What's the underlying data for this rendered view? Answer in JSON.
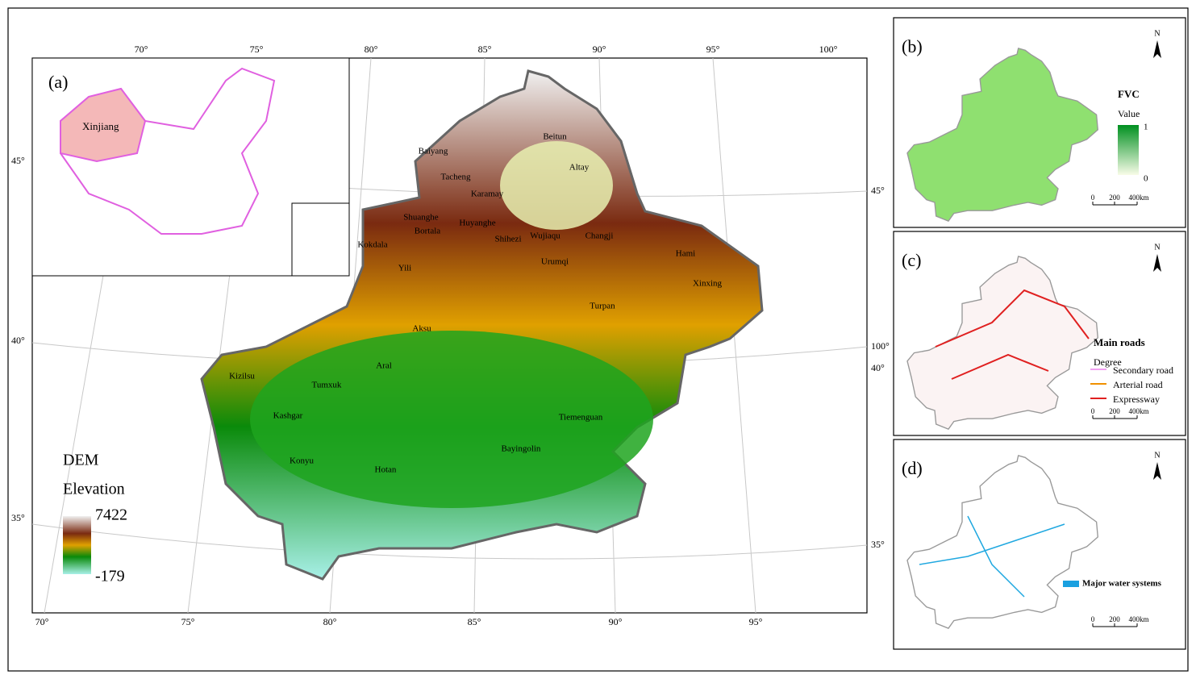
{
  "main_map": {
    "graticule_labels": {
      "top": [
        "70°",
        "75°",
        "80°",
        "85°",
        "90°",
        "95°",
        "100°"
      ],
      "bottom": [
        "70°",
        "75°",
        "80°",
        "85°",
        "90°",
        "95°"
      ],
      "left": [
        "45°",
        "40°",
        "35°"
      ],
      "right": [
        "45°",
        "100°",
        "40°",
        "35°"
      ]
    },
    "places": [
      "Baiyang",
      "Tacheng",
      "Karamay",
      "Beitun",
      "Altay",
      "Shuanghe",
      "Bortala",
      "Huyanghe",
      "Shihezi",
      "Wujiaqu",
      "Changji",
      "Kokdala",
      "Yili",
      "Urumqi",
      "Hami",
      "Xinxing",
      "Turpan",
      "Aksu",
      "Aral",
      "Kizilsu",
      "Tumxuk",
      "Kashgar",
      "Tiemenguan",
      "Bayingolin",
      "Konyu",
      "Hotan"
    ],
    "legend": {
      "title": "DEM",
      "subtitle": "Elevation",
      "max": "7422",
      "min": "-179"
    }
  },
  "inset_a": {
    "label": "(a)",
    "region": "Xinjiang"
  },
  "panel_b": {
    "label": "(b)",
    "north": "N",
    "legend_title": "FVC",
    "legend_subtitle": "Value",
    "max": "1",
    "min": "0",
    "scale_bar": [
      "0",
      "200",
      "400km"
    ]
  },
  "panel_c": {
    "label": "(c)",
    "north": "N",
    "legend_title": "Main roads",
    "legend_subtitle": "Degree",
    "items": [
      "Secondary road",
      "Arterial road",
      "Expressway"
    ],
    "scale_bar": [
      "0",
      "200",
      "400km"
    ]
  },
  "panel_d": {
    "label": "(d)",
    "north": "N",
    "legend_item": "Major water systems",
    "scale_bar": [
      "0",
      "200",
      "400km"
    ]
  }
}
